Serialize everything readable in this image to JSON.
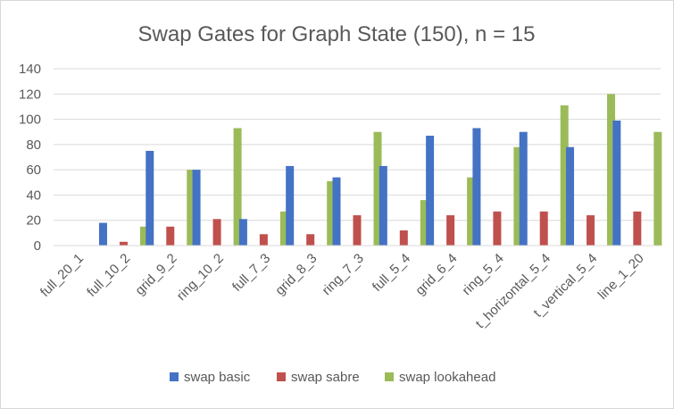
{
  "chart_data": {
    "type": "bar",
    "title": "Swap Gates for Graph State (150), n = 15",
    "xlabel": "",
    "ylabel": "",
    "ylim": [
      0,
      140
    ],
    "yticks": [
      "0",
      "20",
      "40",
      "60",
      "80",
      "100",
      "120",
      "140"
    ],
    "grid": true,
    "legend_position": "bottom",
    "categories": [
      "full_20_1",
      "full_10_2",
      "grid_9_2",
      "ring_10_2",
      "full_7_3",
      "grid_8_3",
      "ring_7_3",
      "full_5_4",
      "grid_6_4",
      "ring_5_4",
      "t_horizontal_5_4",
      "t_vertical_5_4",
      "line_1_20"
    ],
    "series": [
      {
        "name": "swap basic",
        "color": "#4472c4",
        "values": [
          0,
          18,
          75,
          60,
          21,
          63,
          54,
          63,
          87,
          93,
          90,
          78,
          99
        ]
      },
      {
        "name": "swap sabre",
        "color": "#c0504d",
        "values": [
          0,
          3,
          15,
          21,
          9,
          9,
          24,
          12,
          24,
          27,
          27,
          24,
          27
        ]
      },
      {
        "name": "swap lookahead",
        "color": "#9bbb59",
        "values": [
          0,
          15,
          60,
          93,
          27,
          51,
          90,
          36,
          54,
          78,
          111,
          120,
          90
        ]
      }
    ]
  }
}
